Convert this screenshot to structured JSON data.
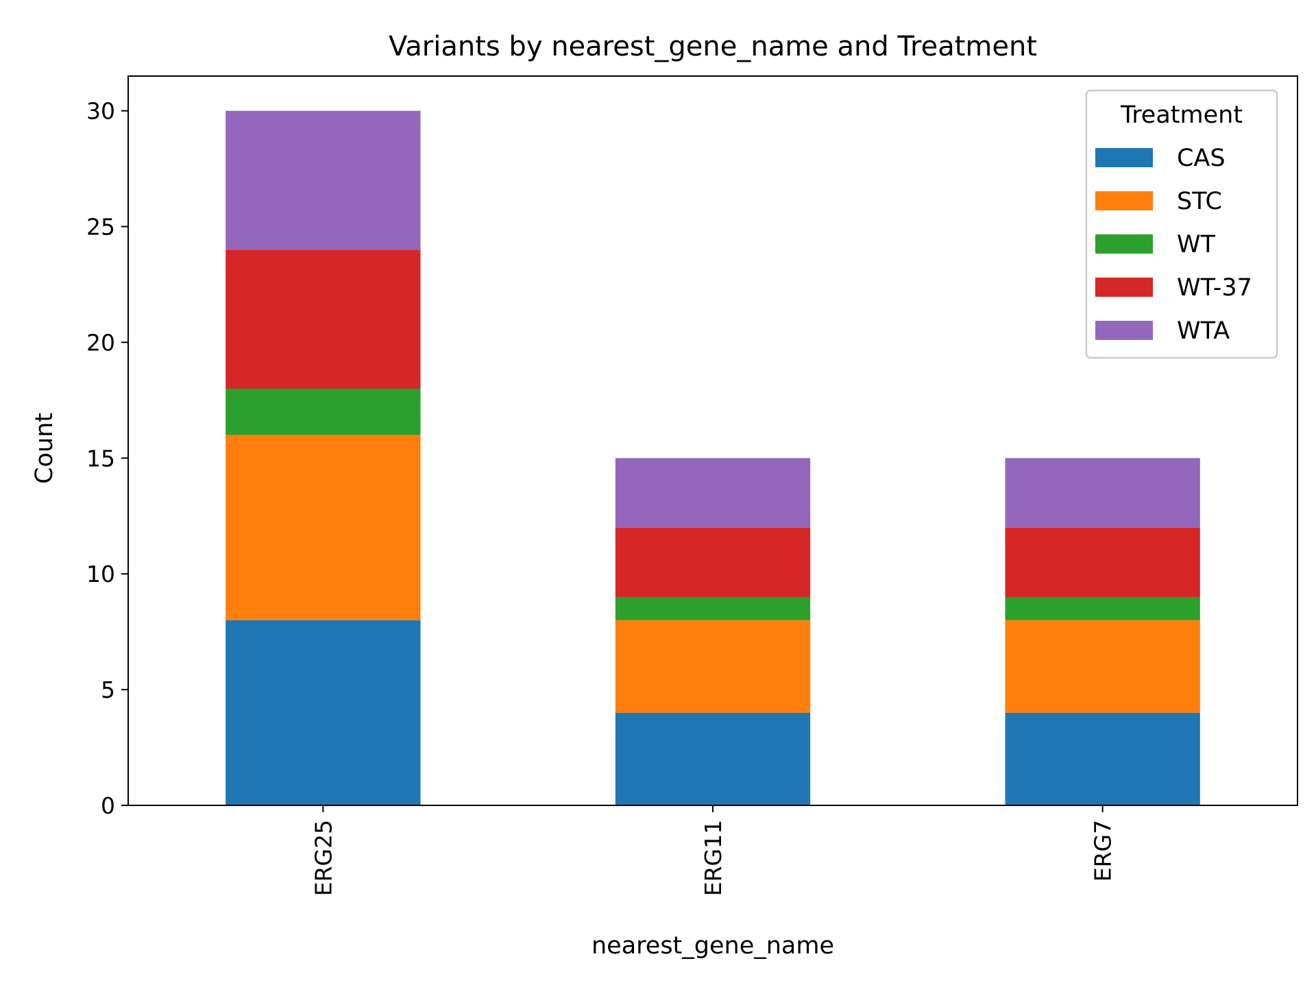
{
  "chart_data": {
    "type": "bar",
    "stacked": true,
    "title": "Variants by nearest_gene_name and Treatment",
    "xlabel": "nearest_gene_name",
    "ylabel": "Count",
    "categories": [
      "ERG25",
      "ERG11",
      "ERG7"
    ],
    "ylim": [
      0,
      31.5
    ],
    "yticks": [
      0,
      5,
      10,
      15,
      20,
      25,
      30
    ],
    "grid": false,
    "legend": {
      "title": "Treatment",
      "placement": "top-right"
    },
    "series": [
      {
        "name": "CAS",
        "color": "#1f77b4",
        "values": [
          8,
          4,
          4
        ]
      },
      {
        "name": "STC",
        "color": "#ff7f0e",
        "values": [
          8,
          4,
          4
        ]
      },
      {
        "name": "WT",
        "color": "#2ca02c",
        "values": [
          2,
          1,
          1
        ]
      },
      {
        "name": "WT-37",
        "color": "#d62728",
        "values": [
          6,
          3,
          3
        ]
      },
      {
        "name": "WTA",
        "color": "#9467bd",
        "values": [
          6,
          3,
          3
        ]
      }
    ]
  }
}
